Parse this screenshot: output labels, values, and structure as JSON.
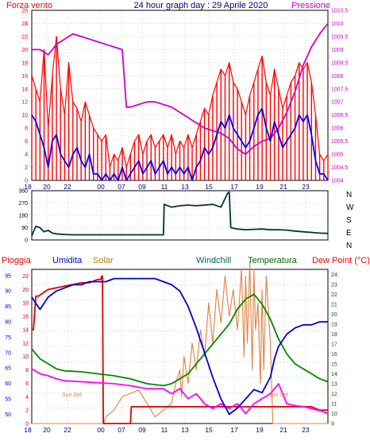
{
  "chart_data": [
    {
      "type": "line",
      "left_label": "Forza vento",
      "title": "24 hour graph day : 29 Aprile 2020",
      "right_label": "Pressione",
      "x_ticks": [
        "18",
        "20",
        "22",
        "00",
        "07",
        "09",
        "11",
        "13",
        "15",
        "17",
        "19",
        "21",
        "23"
      ],
      "ylim": [
        0,
        26
      ],
      "y_ticks": [
        "0",
        "2",
        "4",
        "6",
        "8",
        "10",
        "12",
        "14",
        "16",
        "18",
        "20",
        "22",
        "24",
        "26"
      ],
      "y2lim": [
        1004,
        1010.5
      ],
      "y2_ticks": [
        "1004",
        "1004.5",
        "1005",
        "1005.5",
        "1006",
        "1006.5",
        "1007",
        "1007.5",
        "1008",
        "1008.5",
        "1009",
        "1009.5",
        "1010",
        "1010.5"
      ],
      "colors": {
        "gust": "#ff0000",
        "wind": "#0000ff",
        "pressure": "#cc00cc",
        "grid": "#a0a0a0"
      },
      "series": [
        {
          "key": "gust",
          "x": [
            0,
            5,
            10,
            15,
            20,
            25,
            30,
            35,
            40,
            45,
            50,
            55,
            60,
            65,
            70,
            75,
            80,
            85,
            90,
            95,
            100,
            105,
            110,
            115,
            120,
            125,
            130,
            135,
            140,
            145,
            150,
            155,
            160,
            165,
            170,
            175,
            180,
            185,
            190,
            195,
            200,
            205,
            210,
            215,
            220,
            225,
            230,
            235,
            240,
            245,
            250,
            255,
            260,
            265,
            270,
            275,
            280,
            285,
            290,
            295,
            300,
            305,
            310,
            315,
            320,
            325,
            330,
            335,
            340,
            345,
            350,
            355,
            360
          ],
          "values": [
            16,
            14,
            12,
            20,
            8,
            16,
            22,
            14,
            10,
            18,
            12,
            11,
            9,
            12,
            10,
            8,
            7,
            6,
            7,
            2,
            4,
            3,
            5,
            2,
            4,
            6,
            7,
            4,
            6,
            7,
            5,
            6,
            7,
            5,
            7,
            4,
            6,
            5,
            7,
            5,
            7,
            9,
            11,
            10,
            13,
            15,
            17,
            16,
            18,
            15,
            14,
            12,
            10,
            13,
            15,
            17,
            19,
            15,
            13,
            17,
            14,
            11,
            13,
            15,
            16,
            18,
            17,
            18,
            15,
            10,
            4,
            3,
            4
          ]
        },
        {
          "key": "wind",
          "x": [
            0,
            5,
            10,
            15,
            20,
            25,
            30,
            35,
            40,
            45,
            50,
            55,
            60,
            65,
            70,
            75,
            80,
            85,
            90,
            95,
            100,
            105,
            110,
            115,
            120,
            125,
            130,
            135,
            140,
            145,
            150,
            155,
            160,
            165,
            170,
            175,
            180,
            185,
            190,
            195,
            200,
            205,
            210,
            215,
            220,
            225,
            230,
            235,
            240,
            245,
            250,
            255,
            260,
            265,
            270,
            275,
            280,
            285,
            290,
            295,
            300,
            305,
            310,
            315,
            320,
            325,
            330,
            335,
            340,
            345,
            350,
            355,
            360
          ],
          "values": [
            10,
            9,
            7,
            5,
            2,
            6,
            7,
            4,
            3,
            2,
            4,
            5,
            3,
            2,
            4,
            1,
            1,
            0,
            1,
            0,
            1,
            0,
            2,
            0,
            1,
            2,
            3,
            1,
            2,
            3,
            1,
            2,
            3,
            1,
            2,
            1,
            2,
            1,
            2,
            0,
            2,
            3,
            5,
            4,
            5,
            7,
            9,
            8,
            10,
            8,
            7,
            6,
            5,
            6,
            8,
            10,
            11,
            8,
            6,
            9,
            7,
            5,
            6,
            7,
            8,
            10,
            9,
            10,
            7,
            3,
            1,
            1,
            0
          ]
        },
        {
          "key": "pressure",
          "x": [
            0,
            10,
            20,
            30,
            40,
            50,
            60,
            70,
            80,
            90,
            100,
            110,
            115,
            120,
            130,
            140,
            150,
            160,
            170,
            180,
            190,
            200,
            210,
            220,
            230,
            240,
            250,
            260,
            270,
            280,
            290,
            300,
            310,
            320,
            330,
            340,
            350,
            360
          ],
          "values": [
            1009,
            1009,
            1008.8,
            1009.2,
            1009.4,
            1009.6,
            1009.5,
            1009.4,
            1009.3,
            1009.2,
            1009.1,
            1009,
            1006.8,
            1006.8,
            1006.9,
            1007,
            1007,
            1006.9,
            1006.8,
            1006.6,
            1006.4,
            1006.2,
            1006,
            1005.9,
            1005.8,
            1005.6,
            1005.2,
            1005,
            1005.3,
            1005.5,
            1005.6,
            1006,
            1006.6,
            1007.4,
            1008.4,
            1009.1,
            1009.6,
            1010
          ]
        }
      ]
    },
    {
      "type": "line",
      "ylim": [
        0,
        360
      ],
      "y_ticks": [
        "0",
        "90",
        "180",
        "270",
        "360"
      ],
      "direction_labels": [
        "N",
        "W",
        "S",
        "E",
        "N"
      ],
      "x_ticks": [
        "18",
        "20",
        "22",
        "00",
        "07",
        "09",
        "11",
        "13",
        "15",
        "17",
        "19",
        "21",
        "23"
      ],
      "colors": {
        "direction": "#003333"
      },
      "series": [
        {
          "key": "direction",
          "x": [
            0,
            5,
            10,
            15,
            20,
            25,
            30,
            40,
            50,
            60,
            70,
            80,
            90,
            100,
            110,
            120,
            130,
            140,
            150,
            160,
            161,
            170,
            180,
            190,
            200,
            210,
            220,
            230,
            238,
            240,
            242,
            250,
            260,
            270,
            280,
            290,
            300,
            310,
            320,
            330,
            340,
            350,
            360
          ],
          "values": [
            30,
            100,
            90,
            60,
            70,
            50,
            45,
            40,
            38,
            38,
            38,
            38,
            38,
            38,
            38,
            38,
            38,
            38,
            38,
            38,
            260,
            240,
            250,
            255,
            250,
            255,
            260,
            240,
            340,
            350,
            90,
            80,
            75,
            78,
            80,
            75,
            75,
            72,
            65,
            60,
            55,
            50,
            48
          ]
        }
      ]
    },
    {
      "type": "line",
      "labels": [
        "Pioggia",
        "Umidita",
        "Solar",
        "Windchill",
        "Temperatura",
        "Dew Point (°C)"
      ],
      "annotations": [
        "Sun Set",
        "Sun Set"
      ],
      "x_ticks": [
        "18",
        "20",
        "22",
        "00",
        "07",
        "09",
        "11",
        "13",
        "15",
        "17",
        "19",
        "21",
        "23"
      ],
      "left_ticks": [
        "50",
        "55",
        "60",
        "65",
        "70",
        "75",
        "80",
        "85",
        "90",
        "95"
      ],
      "rain_ticks": [
        "0",
        "2",
        "4",
        "6",
        "8",
        "10",
        "12",
        "14",
        "16",
        "18",
        "20",
        "22"
      ],
      "right_ticks": [
        "9",
        "10",
        "11",
        "12",
        "13",
        "14",
        "15",
        "16",
        "17",
        "18",
        "19",
        "20",
        "21",
        "22",
        "23",
        "24"
      ],
      "humidity_lim": [
        47,
        97
      ],
      "rain_lim": [
        0,
        23
      ],
      "temp_lim": [
        9,
        24.5
      ],
      "colors": {
        "rain": "#dd0000",
        "humidity": "#0000cc",
        "solar": "#e08040",
        "windchill": "#008800",
        "temperature": "#006600",
        "dewpoint": "#ff00ff"
      },
      "series": [
        {
          "key": "humidity",
          "x": [
            0,
            5,
            10,
            15,
            20,
            30,
            40,
            50,
            60,
            70,
            80,
            90,
            100,
            110,
            120,
            130,
            140,
            150,
            160,
            170,
            180,
            190,
            200,
            210,
            220,
            230,
            240,
            250,
            260,
            270,
            280,
            290,
            295,
            300,
            305,
            310,
            320,
            330,
            340,
            350,
            360
          ],
          "values": [
            88,
            86,
            84,
            86,
            88,
            90,
            91,
            92,
            92,
            93,
            93,
            93,
            94,
            94,
            94,
            94,
            94,
            94,
            93,
            92,
            90,
            85,
            78,
            70,
            62,
            55,
            50,
            52,
            55,
            58,
            57,
            62,
            68,
            72,
            74,
            76,
            78,
            79,
            79,
            80,
            80
          ]
        },
        {
          "key": "rain",
          "x": [
            0,
            2,
            5,
            8,
            20,
            40,
            60,
            70,
            80,
            84,
            85,
            86,
            87,
            120,
            121,
            150,
            180,
            200,
            230,
            260,
            280,
            300,
            340,
            350,
            360
          ],
          "values": [
            14,
            14,
            19,
            19,
            20,
            20.5,
            21,
            21,
            21.5,
            21.5,
            22,
            22,
            0,
            0,
            2.5,
            2.5,
            2.5,
            2.5,
            2.5,
            2.5,
            2.5,
            2.5,
            2.5,
            2,
            2
          ]
        },
        {
          "key": "solar",
          "x": [
            0,
            87,
            88,
            90,
            100,
            110,
            130,
            140,
            145,
            150,
            160,
            170,
            175,
            180,
            182,
            185,
            190,
            195,
            200,
            205,
            210,
            215,
            220,
            225,
            230,
            235,
            240,
            245,
            250,
            255,
            258,
            260,
            262,
            265,
            268,
            270,
            272,
            275,
            278,
            280,
            282,
            285,
            290,
            293,
            295,
            300,
            360
          ],
          "values": [
            0,
            0,
            0,
            1,
            2,
            4,
            5,
            3,
            2,
            1,
            2,
            3,
            6,
            8,
            4,
            10,
            6,
            12,
            8,
            14,
            10,
            18,
            12,
            20,
            15,
            22,
            16,
            20,
            14,
            23,
            10,
            22,
            12,
            24,
            8,
            23,
            14,
            18,
            6,
            20,
            8,
            22,
            12,
            0,
            0,
            0,
            0
          ]
        },
        {
          "key": "windchill",
          "x": [
            0,
            10,
            20,
            30,
            40,
            60,
            80,
            100,
            120,
            140,
            160,
            170,
            180,
            190,
            200,
            210,
            220,
            230,
            240,
            250,
            260,
            270,
            280,
            290,
            300,
            310,
            320,
            330,
            340,
            350,
            360
          ],
          "values": [
            16.5,
            15.5,
            15,
            14.5,
            14.3,
            14.2,
            14,
            13.8,
            13.5,
            13,
            12.8,
            13,
            13.5,
            14,
            15,
            16,
            17,
            18,
            19,
            20.5,
            21.5,
            22,
            21,
            19.5,
            17.5,
            16,
            15,
            14.5,
            14,
            13.5,
            13.2
          ]
        },
        {
          "key": "dewpoint",
          "x": [
            0,
            10,
            20,
            30,
            40,
            60,
            80,
            100,
            120,
            140,
            160,
            170,
            180,
            190,
            200,
            210,
            220,
            230,
            240,
            250,
            260,
            270,
            280,
            290,
            300,
            310,
            320,
            330,
            340,
            350,
            360
          ],
          "values": [
            14.5,
            14,
            13.8,
            13.5,
            13.3,
            13.2,
            13.1,
            13,
            12.8,
            12.5,
            12.5,
            12,
            12.5,
            11.5,
            12,
            11,
            10.5,
            11,
            10.5,
            11,
            10,
            11,
            11.5,
            12,
            13,
            11,
            10.8,
            10.7,
            10.5,
            10.3,
            10
          ]
        }
      ]
    }
  ]
}
